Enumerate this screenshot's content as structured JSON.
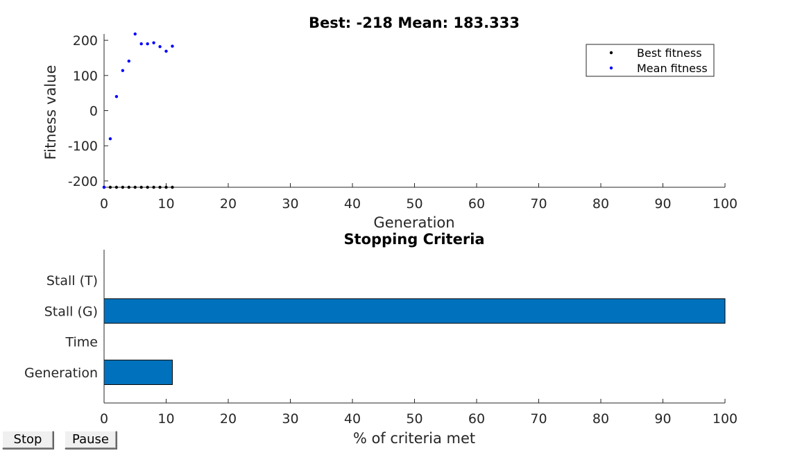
{
  "colors": {
    "best_marker": "#000000",
    "mean_marker": "#0000ff",
    "bar_fill": "#0072bd",
    "axis": "#262626"
  },
  "buttons": {
    "stop_label": "Stop",
    "pause_label": "Pause"
  },
  "chart_data": [
    {
      "type": "scatter",
      "title": "Best: -218 Mean: 183.333",
      "xlabel": "Generation",
      "ylabel": "Fitness value",
      "xlim": [
        0,
        100
      ],
      "ylim": [
        -218,
        218
      ],
      "xticks": [
        0,
        10,
        20,
        30,
        40,
        50,
        60,
        70,
        80,
        90,
        100
      ],
      "yticks": [
        -200,
        -100,
        0,
        100,
        200
      ],
      "grid": false,
      "legend_position": "top-right",
      "series": [
        {
          "name": "Best fitness",
          "color": "#000000",
          "x": [
            0,
            1,
            2,
            3,
            4,
            5,
            6,
            7,
            8,
            9,
            10,
            11
          ],
          "y": [
            -218,
            -218,
            -218,
            -218,
            -218,
            -218,
            -218,
            -218,
            -218,
            -218,
            -218,
            -218
          ]
        },
        {
          "name": "Mean fitness",
          "color": "#0000ff",
          "x": [
            0,
            1,
            2,
            3,
            4,
            5,
            6,
            7,
            8,
            9,
            10,
            11
          ],
          "y": [
            -218,
            -80,
            40,
            114,
            141,
            218,
            190,
            190,
            193,
            182,
            169,
            183.333
          ]
        }
      ]
    },
    {
      "type": "bar",
      "orientation": "horizontal",
      "title": "Stopping Criteria",
      "xlabel": "% of criteria met",
      "ylabel": "",
      "xlim": [
        0,
        100
      ],
      "xticks": [
        0,
        10,
        20,
        30,
        40,
        50,
        60,
        70,
        80,
        90,
        100
      ],
      "grid": false,
      "categories": [
        "Generation",
        "Time",
        "Stall (G)",
        "Stall (T)"
      ],
      "values": [
        11,
        0,
        100,
        0
      ]
    }
  ]
}
